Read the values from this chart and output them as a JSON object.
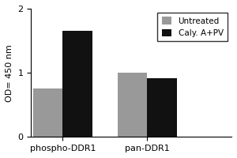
{
  "groups": [
    "phospho-DDR1",
    "pan-DDR1"
  ],
  "series": [
    {
      "label": "Untreated",
      "color": "#999999",
      "values": [
        0.76,
        1.0
      ]
    },
    {
      "label": "Caly. A+PV",
      "color": "#111111",
      "values": [
        1.65,
        0.92
      ]
    }
  ],
  "ylabel": "OD= 450 nm",
  "ylim": [
    0,
    2
  ],
  "yticks": [
    0,
    1,
    2
  ],
  "bar_width": 0.28,
  "group_positions": [
    0.3,
    1.1
  ],
  "legend_fontsize": 7.5,
  "tick_fontsize": 8,
  "label_fontsize": 8,
  "figsize": [
    3.0,
    2.0
  ],
  "dpi": 100
}
